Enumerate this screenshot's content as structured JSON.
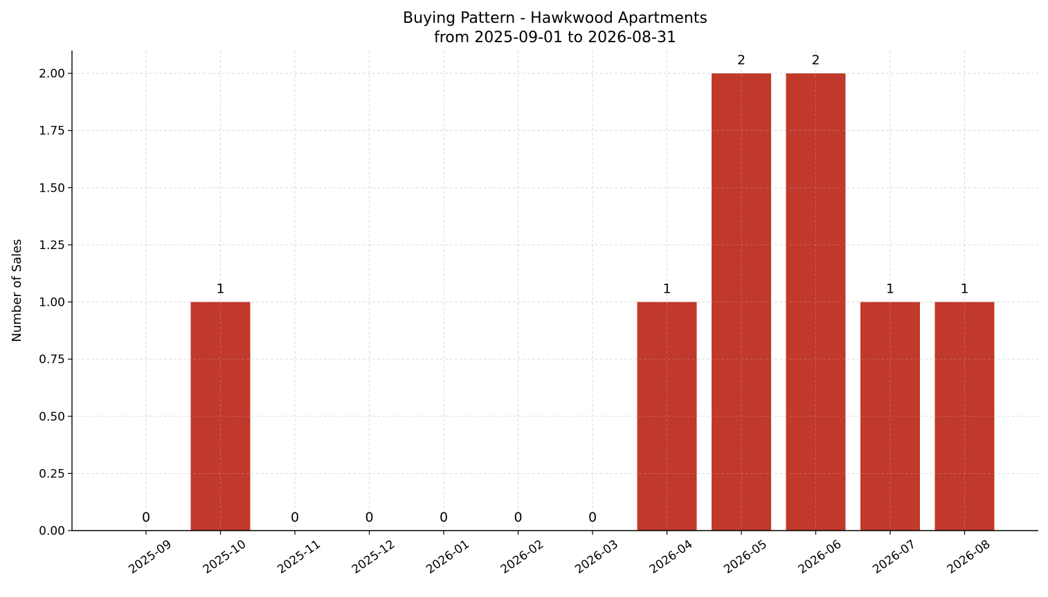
{
  "chart_data": {
    "type": "bar",
    "title": "Buying Pattern - Hawkwood Apartments",
    "subtitle": "from 2025-09-01 to 2026-08-31",
    "xlabel": "",
    "ylabel": "Number of Sales",
    "categories": [
      "2025-09",
      "2025-10",
      "2025-11",
      "2025-12",
      "2026-01",
      "2026-02",
      "2026-03",
      "2026-04",
      "2026-05",
      "2026-06",
      "2026-07",
      "2026-08"
    ],
    "values": [
      0,
      1,
      0,
      0,
      0,
      0,
      0,
      1,
      2,
      2,
      1,
      1
    ],
    "data_labels": [
      "0",
      "1",
      "0",
      "0",
      "0",
      "0",
      "0",
      "1",
      "2",
      "2",
      "1",
      "1"
    ],
    "ylim": [
      0,
      2.1
    ],
    "yticks": [
      0,
      0.25,
      0.5,
      0.75,
      1.0,
      1.25,
      1.5,
      1.75,
      2.0
    ],
    "ytick_labels": [
      "0.00",
      "0.25",
      "0.50",
      "0.75",
      "1.00",
      "1.25",
      "1.50",
      "1.75",
      "2.00"
    ],
    "bar_color": "#c0392b",
    "grid": true,
    "legend": null
  }
}
